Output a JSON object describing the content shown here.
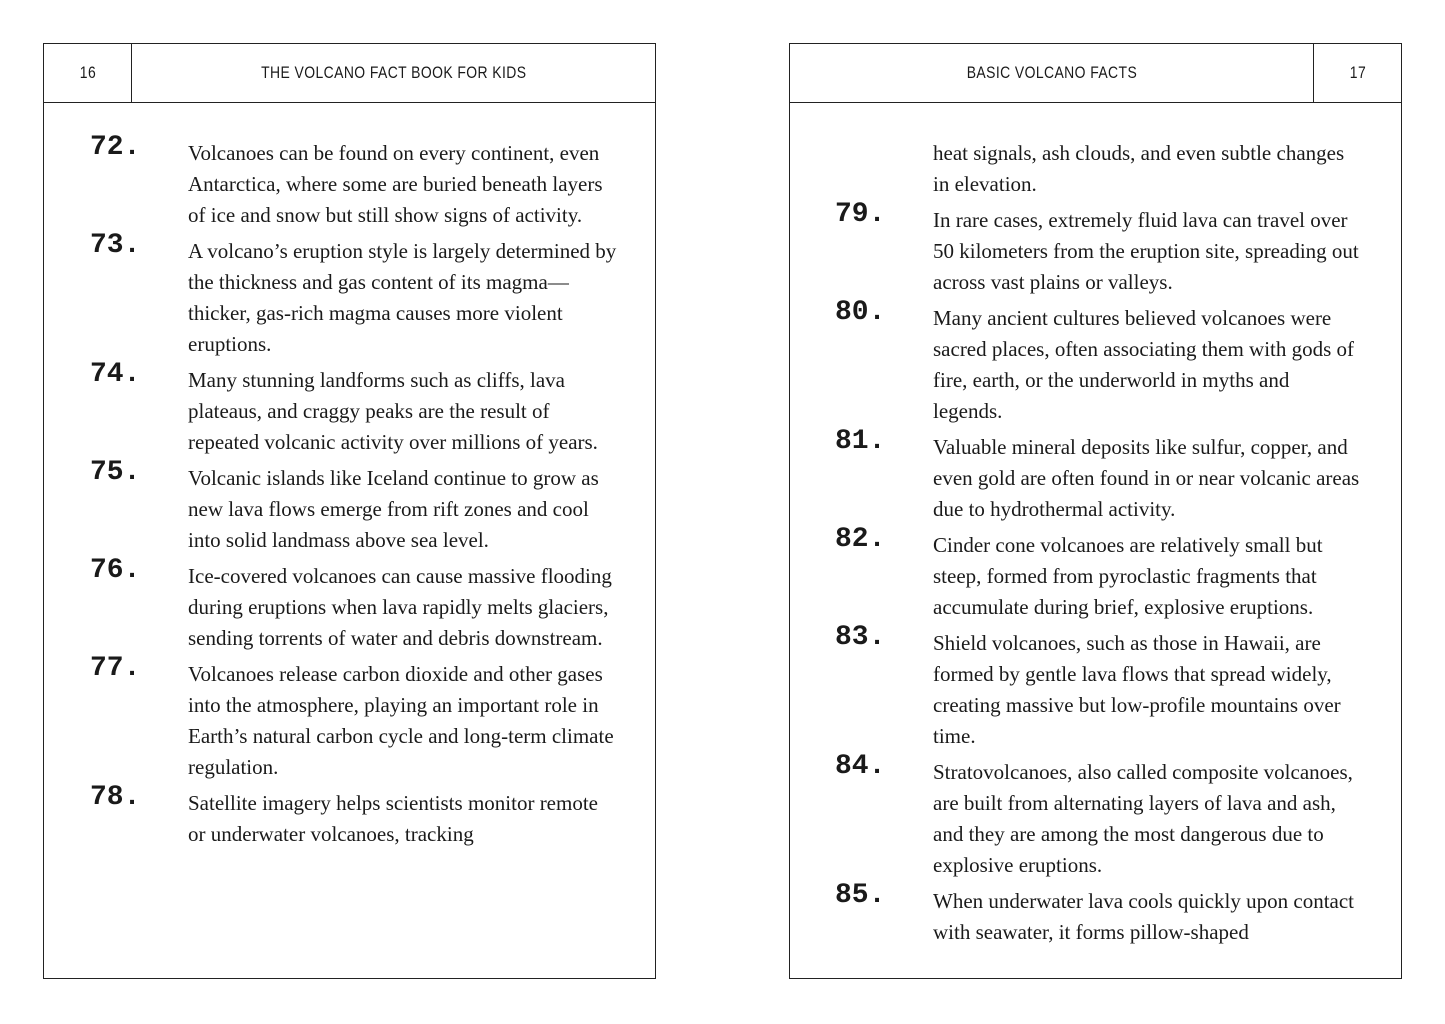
{
  "left_page": {
    "page_number": "16",
    "running_head": "THE VOLCANO FACT BOOK FOR KIDS",
    "facts": [
      {
        "number": "72.",
        "text": "Volcanoes can be found on every continent, even Antarctica, where some are buried beneath layers of ice and snow but still show signs of activity."
      },
      {
        "number": "73.",
        "text": "A volcano’s eruption style is largely determined by the thickness and gas content of its magma—thicker, gas-rich magma causes more violent eruptions."
      },
      {
        "number": "74.",
        "text": "Many stunning landforms such as cliffs, lava plateaus, and craggy peaks are the result of repeated volcanic activity over millions of years."
      },
      {
        "number": "75.",
        "text": "Volcanic islands like Iceland continue to grow as new lava flows emerge from rift zones and cool into solid landmass above sea level."
      },
      {
        "number": "76.",
        "text": "Ice-covered volcanoes can cause massive flooding during eruptions when lava rapidly melts glaciers, sending torrents of water and debris downstream."
      },
      {
        "number": "77.",
        "text": "Volcanoes release carbon dioxide and other gases into the atmosphere, playing an important role in Earth’s natural carbon cycle and long-term climate regulation."
      },
      {
        "number": "78.",
        "text": "Satellite imagery helps scientists monitor remote or underwater volcanoes, tracking"
      }
    ]
  },
  "right_page": {
    "page_number": "17",
    "running_head": "BASIC VOLCANO FACTS",
    "continuation": "heat signals, ash clouds, and even subtle changes in elevation.",
    "facts": [
      {
        "number": "79.",
        "text": "In rare cases, extremely fluid lava can travel over 50 kilometers from the eruption site, spreading out across vast plains or valleys."
      },
      {
        "number": "80.",
        "text": "Many ancient cultures believed volcanoes were sacred places, often associating them with gods of fire, earth, or the underworld in myths and legends."
      },
      {
        "number": "81.",
        "text": "Valuable mineral deposits like sulfur, copper, and even gold are often found in or near volcanic areas due to hydrothermal activity."
      },
      {
        "number": "82.",
        "text": "Cinder cone volcanoes are relatively small but steep, formed from pyroclastic fragments that accumulate during brief, explosive eruptions."
      },
      {
        "number": "83.",
        "text": "Shield volcanoes, such as those in Hawaii, are formed by gentle lava flows that spread widely, creating massive but low-profile mountains over time."
      },
      {
        "number": "84.",
        "text": "Stratovolcanoes, also called composite volcanoes, are built from alternating layers of lava and ash, and they are among the most dangerous due to explosive eruptions."
      },
      {
        "number": "85.",
        "text": "When underwater lava cools quickly upon contact with seawater, it forms pillow-shaped"
      }
    ]
  }
}
